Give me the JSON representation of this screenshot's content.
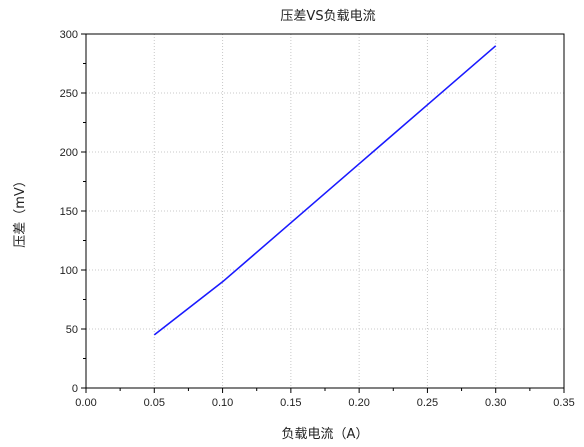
{
  "chart_data": {
    "type": "line",
    "title": "压差VS负载电流",
    "xlabel": "负载电流（A）",
    "ylabel": "压差（mV）",
    "xlim": [
      0.0,
      0.35
    ],
    "ylim": [
      0,
      300
    ],
    "xticks": [
      "0.00",
      "0.05",
      "0.10",
      "0.15",
      "0.20",
      "0.25",
      "0.30",
      "0.35"
    ],
    "yticks": [
      "0",
      "50",
      "100",
      "150",
      "200",
      "250",
      "300"
    ],
    "grid": true,
    "legend": "none",
    "series": [
      {
        "color": "#1a1aff",
        "x": [
          0.05,
          0.1,
          0.15,
          0.2,
          0.25,
          0.3
        ],
        "y": [
          45,
          90,
          140,
          190,
          240,
          290
        ]
      }
    ]
  }
}
